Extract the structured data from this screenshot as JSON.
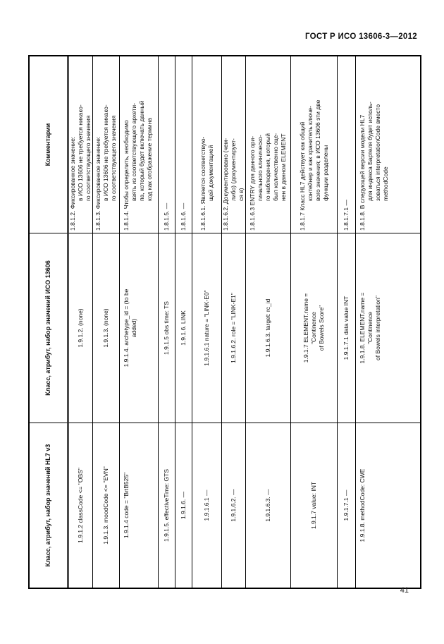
{
  "page": {
    "standard_header": "ГОСТ Р ИСО 13606-3—2012",
    "page_number": "41"
  },
  "table": {
    "columns": [
      {
        "label": "Класс, атрибут, набор значений HL7 v3"
      },
      {
        "label": "Класс, атрибут, набор значений ИСО 13606"
      },
      {
        "label": "Комментарии"
      }
    ],
    "rows": [
      {
        "hl7": "1.9.1.2 classCode <= \"OBS\"",
        "iso": "1.9.1.2. (none)",
        "comment": "1.8.1.2. Фиксированное значение:\nв ИСО 13606 не требуется никако-\nго соответствующего значения"
      },
      {
        "hl7": "1.9.1.3. moodCode <= \"EVN\"",
        "iso": "1.9.1.3. (none)",
        "comment": "1.8.1.3. Фиксированное значение:\nв ИСО 13606 не требуется никако-\nго соответствующего значения"
      },
      {
        "hl7": "1.9.1.4 code = \"BrtB525\"",
        "iso": "1.9.1.4. archetype_id = (to be\nadded)",
        "comment": "1.8.1.4. Чтобы определить, необходимо\nвзять из соответствующего архети-\nпа, который будет включать данный\nкод как отображение термина"
      },
      {
        "hl7": "1.9.1.5. effectiveTime: GTS",
        "iso": "1.9.1.5 obs time: TS",
        "comment": "1.8.1.5. —"
      },
      {
        "hl7": "1.9.1.6. —",
        "iso": "1.9.1.6. LINK",
        "comment": "1.8.1.6. —"
      },
      {
        "hl7": "1.9.1.6.1 —",
        "iso": "1.9.1.6.1 nature = \"LINK-E0\"",
        "comment": "1.8.1.6.1. Является соответствую-\nщей документацией"
      },
      {
        "hl7": "1.9.1.6.2. —",
        "iso": "1.9.1.6.2. role = \"LINK-E1\"",
        "comment": "1.8.1.6.2. Документировано (чем-\nлибо) (документирует-\nся в)"
      },
      {
        "hl7": "1.9.1.6.3. —",
        "iso": "1.9.1.6.3. target: rc_id",
        "comment": "1.8.1.6.3 ENTRY для данного ори-\nгинального клиническо-\nго наблюдения, который\nбыл количественно оце-\nнен в данном ELEMENT"
      },
      {
        "hl7": "1.9.1.7 value: INT",
        "iso": "1.9.1.7 ELEMENT.name =\n\"Continence\nof Bowels Score\"",
        "comment": "1.8.1.7 Класс HL7 действует как общий\nконтейнер и как хранитель ключе-\nвого значения; в ИСО 13606 эти две\nфункции разделены"
      },
      {
        "hl7": "1.9.1.7.1 —",
        "iso": "1.9.1.7.1 data value INT",
        "comment": "1.8.1.7.1 —"
      },
      {
        "hl7": "1.9.1.8. methodCode: CWE",
        "iso": "1.9.1.8. ELEMENT.name =\n\"Continence\nof Bowels interpretation\"",
        "comment": "1.8.1.8. В следующей версии модели HL7\nдля индекса Бартеля будет исполь-\nзоваться interpretationCode вместо\nmethodCode"
      }
    ]
  }
}
